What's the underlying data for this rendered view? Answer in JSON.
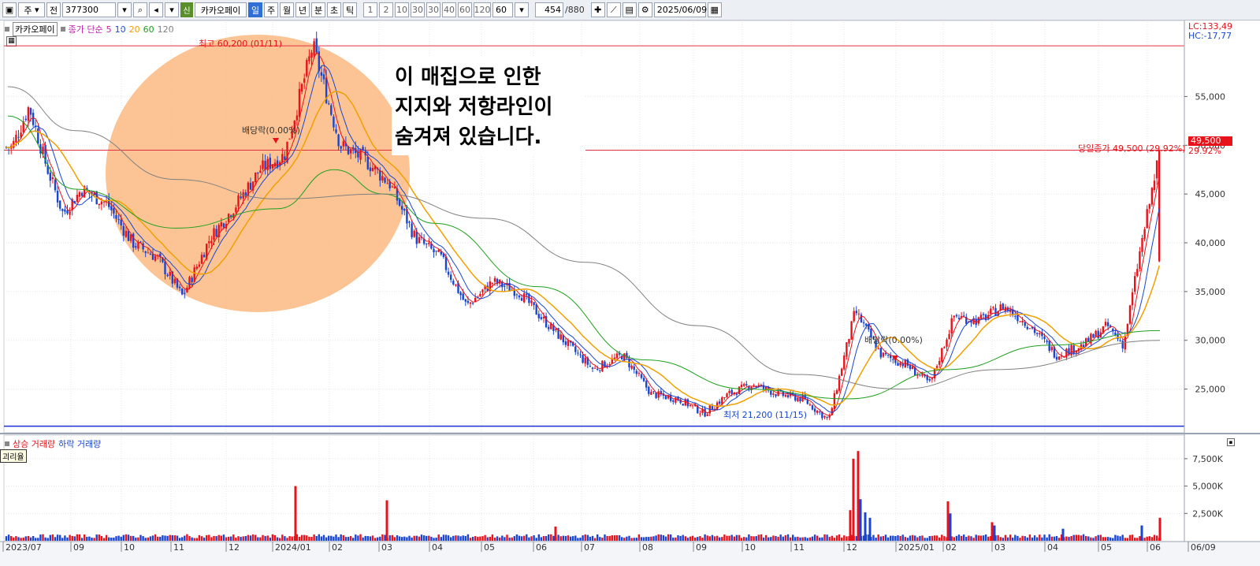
{
  "toolbar": {
    "type_label": "주",
    "scope_label": "전",
    "code": "377300",
    "new_badge": "신",
    "stock_name": "카카오페이",
    "periods": [
      "일",
      "주",
      "월",
      "년",
      "분",
      "초",
      "틱"
    ],
    "active_period": "일",
    "intervals": [
      "1",
      "2",
      "10",
      "30",
      "30",
      "40",
      "60",
      "120"
    ],
    "interval_value": "60",
    "count": "454",
    "total": "/880",
    "date": "2025/06/09"
  },
  "price_panel": {
    "legend_name": "카카오페이",
    "legend_ma_title": "종가 단순",
    "legend_periods": [
      "5",
      "10",
      "20",
      "60",
      "120"
    ],
    "lc": "LC:133,49",
    "hc": "HC:-17,77",
    "high_label": "최고 60,200 (01/11)",
    "low_label": "최저 21,200 (11/15)",
    "dividend_label_1": "배당락(0.00%)",
    "dividend_label_2": "배당락(0.00%)",
    "close_label": "당일종가 49,500 (29.92%)",
    "current_price": "49,500",
    "current_change": "29.92%",
    "annotation": [
      "이 매집으로 인한",
      "지지와 저항라인이",
      "숨겨져 있습니다."
    ]
  },
  "volume_panel": {
    "legend_up": "상승 거래량",
    "legend_down": "하락 거래량",
    "tooltip": "괴리율"
  },
  "colors": {
    "up": "#e8121b",
    "down": "#1846d2",
    "ma5": "#e8121b",
    "ma10": "#1846d2",
    "ma20": "#f0a000",
    "ma60": "#1ea01e",
    "ma120": "#808080",
    "highlight": "#fbb77d",
    "high_line": "#e03040",
    "low_line": "#1f2fd0"
  },
  "chart_data": [
    {
      "type": "candlestick",
      "title": "",
      "y_axis_ticks": [
        "55,000",
        "50,000",
        "45,000",
        "40,000",
        "35,000",
        "30,000",
        "25,000"
      ],
      "x_axis_ticks": [
        "2023/07",
        "09",
        "10",
        "11",
        "12",
        "2024/01",
        "02",
        "03",
        "04",
        "05",
        "06",
        "07",
        "08",
        "09",
        "10",
        "11",
        "12",
        "2025/01",
        "02",
        "03",
        "04",
        "05",
        "06",
        "06/09"
      ],
      "ylim": [
        20600,
        61500
      ],
      "high": 60200,
      "low": 21200,
      "last_close": 49500,
      "change_pct": 29.92,
      "close_path": [
        {
          "date": "2023/07",
          "close": 49800
        },
        {
          "date": "2023/07",
          "close": 54000
        },
        {
          "date": "2023/08",
          "close": 48000
        },
        {
          "date": "2023/08",
          "close": 43000
        },
        {
          "date": "2023/09",
          "close": 45500
        },
        {
          "date": "2023/09",
          "close": 44000
        },
        {
          "date": "2023/10",
          "close": 40000
        },
        {
          "date": "2023/10",
          "close": 38500
        },
        {
          "date": "2023/11",
          "close": 34500
        },
        {
          "date": "2023/11",
          "close": 40500
        },
        {
          "date": "2023/12",
          "close": 44000
        },
        {
          "date": "2023/12",
          "close": 47500
        },
        {
          "date": "2024/01",
          "close": 49000
        },
        {
          "date": "2024/01",
          "close": 60200
        },
        {
          "date": "2024/02",
          "close": 50000
        },
        {
          "date": "2024/02",
          "close": 48500
        },
        {
          "date": "2024/03",
          "close": 46000
        },
        {
          "date": "2024/03",
          "close": 40500
        },
        {
          "date": "2024/04",
          "close": 38500
        },
        {
          "date": "2024/04",
          "close": 33500
        },
        {
          "date": "2024/05",
          "close": 36000
        },
        {
          "date": "2024/05",
          "close": 35000
        },
        {
          "date": "2024/06",
          "close": 32000
        },
        {
          "date": "2024/06",
          "close": 29500
        },
        {
          "date": "2024/07",
          "close": 27000
        },
        {
          "date": "2024/07",
          "close": 28500
        },
        {
          "date": "2024/08",
          "close": 24500
        },
        {
          "date": "2024/08",
          "close": 24000
        },
        {
          "date": "2024/09",
          "close": 22500
        },
        {
          "date": "2024/09",
          "close": 24500
        },
        {
          "date": "2024/10",
          "close": 25500
        },
        {
          "date": "2024/10",
          "close": 24500
        },
        {
          "date": "2024/11",
          "close": 24000
        },
        {
          "date": "2024/11",
          "close": 21800
        },
        {
          "date": "2024/12",
          "close": 33000
        },
        {
          "date": "2024/12",
          "close": 28500
        },
        {
          "date": "2025/01",
          "close": 27500
        },
        {
          "date": "2025/01",
          "close": 25500
        },
        {
          "date": "2025/02",
          "close": 32500
        },
        {
          "date": "2025/02",
          "close": 32000
        },
        {
          "date": "2025/03",
          "close": 33500
        },
        {
          "date": "2025/03",
          "close": 31500
        },
        {
          "date": "2025/04",
          "close": 28500
        },
        {
          "date": "2025/04",
          "close": 29500
        },
        {
          "date": "2025/05",
          "close": 31500
        },
        {
          "date": "2025/05",
          "close": 29500
        },
        {
          "date": "2025/05",
          "close": 39000
        },
        {
          "date": "2025/06",
          "close": 38000
        },
        {
          "date": "2025/06/09",
          "close": 49500
        }
      ],
      "moving_averages": [
        {
          "name": "5",
          "color": "#e8121b"
        },
        {
          "name": "10",
          "color": "#1846d2"
        },
        {
          "name": "20",
          "color": "#f0a000"
        },
        {
          "name": "60",
          "color": "#1ea01e"
        },
        {
          "name": "120",
          "color": "#808080"
        }
      ],
      "ma60_path": [
        {
          "date": "2023/07",
          "value": 53000
        },
        {
          "date": "2023/09",
          "value": 45500
        },
        {
          "date": "2023/11",
          "value": 41500
        },
        {
          "date": "2024/01",
          "value": 43500
        },
        {
          "date": "2024/02",
          "value": 47500
        },
        {
          "date": "2024/03",
          "value": 45000
        },
        {
          "date": "2024/04",
          "value": 42000
        },
        {
          "date": "2024/06",
          "value": 35500
        },
        {
          "date": "2024/08",
          "value": 28000
        },
        {
          "date": "2024/10",
          "value": 25000
        },
        {
          "date": "2024/12",
          "value": 24000
        },
        {
          "date": "2025/02",
          "value": 27000
        },
        {
          "date": "2025/04",
          "value": 29500
        },
        {
          "date": "2025/06/09",
          "value": 31000
        }
      ],
      "ma120_path": [
        {
          "date": "2023/07",
          "value": 56000
        },
        {
          "date": "2023/09",
          "value": 51500
        },
        {
          "date": "2023/11",
          "value": 46500
        },
        {
          "date": "2024/01",
          "value": 44500
        },
        {
          "date": "2024/03",
          "value": 45000
        },
        {
          "date": "2024/05",
          "value": 42500
        },
        {
          "date": "2024/07",
          "value": 38000
        },
        {
          "date": "2024/09",
          "value": 31500
        },
        {
          "date": "2024/11",
          "value": 26500
        },
        {
          "date": "2025/01",
          "value": 25000
        },
        {
          "date": "2025/03",
          "value": 27000
        },
        {
          "date": "2025/06/09",
          "value": 30000
        }
      ],
      "reference_lines": [
        {
          "label": "최고 60,200 (01/11)",
          "value": 60200
        },
        {
          "label": "당일종가 49,500 (29.92%)",
          "value": 49500
        },
        {
          "label": "최저 21,200 (11/15)",
          "value": 21200
        }
      ]
    },
    {
      "type": "bar",
      "title": "",
      "series": [
        {
          "name": "상승 거래량",
          "color": "#e8121b"
        },
        {
          "name": "하락 거래량",
          "color": "#1846d2"
        }
      ],
      "y_axis_ticks": [
        "7,500K",
        "5,000K",
        "2,500K"
      ],
      "ylim": [
        0,
        8500
      ],
      "unit": "K",
      "notable_bars": [
        {
          "date": "2024/01",
          "value": 5000
        },
        {
          "date": "2024/03",
          "value": 3700
        },
        {
          "date": "2024/12",
          "value": 7500
        },
        {
          "date": "2024/12",
          "value": 8200
        },
        {
          "date": "2024/12",
          "value": 3800
        },
        {
          "date": "2025/02",
          "value": 3600
        },
        {
          "date": "2025/06",
          "value": 1400
        },
        {
          "date": "2025/06/09",
          "value": 2100
        }
      ]
    }
  ]
}
